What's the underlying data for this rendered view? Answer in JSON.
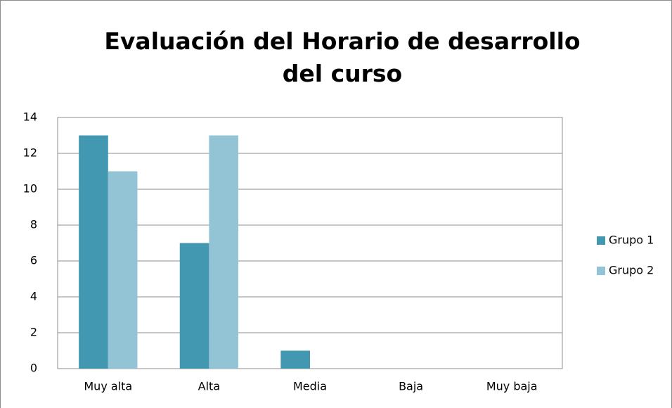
{
  "chart_data": {
    "type": "bar",
    "title": "Evaluación del Horario de desarrollo del curso",
    "categories": [
      "Muy alta",
      "Alta",
      "Media",
      "Baja",
      "Muy baja"
    ],
    "series": [
      {
        "name": "Grupo 1",
        "color": "#4298b0",
        "values": [
          13,
          7,
          1,
          0,
          0
        ]
      },
      {
        "name": "Grupo 2",
        "color": "#93c4d6",
        "values": [
          11,
          13,
          0,
          0,
          0
        ]
      }
    ],
    "ylim": [
      0,
      14
    ],
    "yticks": [
      0,
      2,
      4,
      6,
      8,
      10,
      12,
      14
    ],
    "grid": true,
    "legend": "right"
  }
}
